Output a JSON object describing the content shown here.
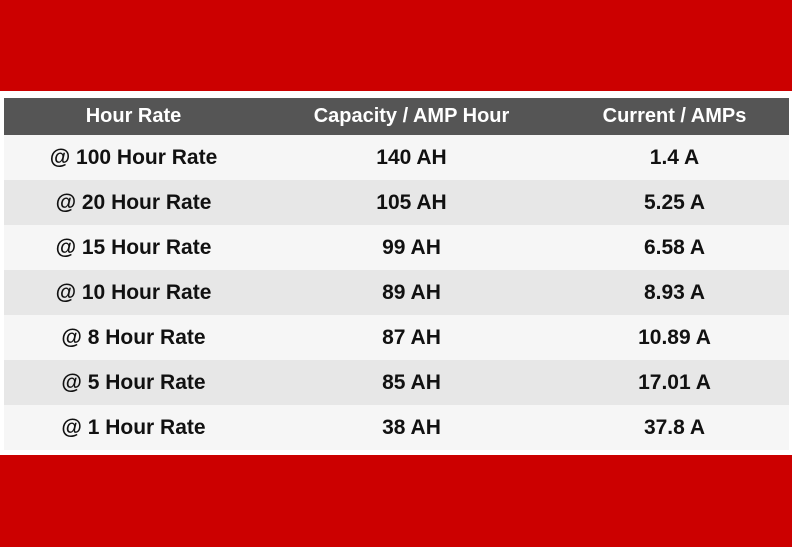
{
  "table": {
    "headers": [
      "Hour Rate",
      "Capacity / AMP Hour",
      "Current / AMPs"
    ],
    "rows": [
      [
        "@ 100 Hour Rate",
        "140 AH",
        "1.4 A"
      ],
      [
        "@ 20 Hour Rate",
        "105 AH",
        "5.25 A"
      ],
      [
        "@ 15 Hour Rate",
        "99 AH",
        "6.58 A"
      ],
      [
        "@ 10 Hour Rate",
        "89 AH",
        "8.93 A"
      ],
      [
        "@ 8 Hour Rate",
        "87 AH",
        "10.89 A"
      ],
      [
        "@ 5 Hour Rate",
        "85 AH",
        "17.01 A"
      ],
      [
        "@ 1 Hour Rate",
        "38 AH",
        "37.8 A"
      ]
    ]
  },
  "colors": {
    "band": "#cc0000",
    "header_bg": "#555555",
    "row_light": "#f6f6f6",
    "row_dark": "#e7e7e7"
  }
}
